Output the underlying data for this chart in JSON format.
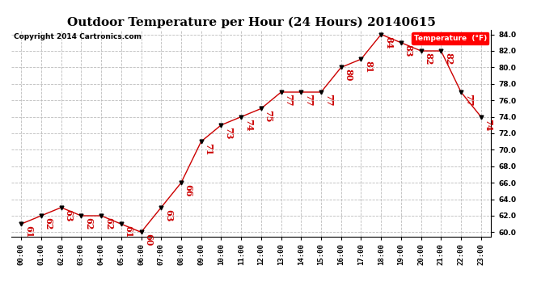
{
  "title": "Outdoor Temperature per Hour (24 Hours) 20140615",
  "copyright": "Copyright 2014 Cartronics.com",
  "legend_label": "Temperature  (°F)",
  "hours": [
    "00:00",
    "01:00",
    "02:00",
    "03:00",
    "04:00",
    "05:00",
    "06:00",
    "07:00",
    "08:00",
    "09:00",
    "10:00",
    "11:00",
    "12:00",
    "13:00",
    "14:00",
    "15:00",
    "16:00",
    "17:00",
    "18:00",
    "19:00",
    "20:00",
    "21:00",
    "22:00",
    "23:00"
  ],
  "temperatures": [
    61,
    62,
    63,
    62,
    62,
    61,
    60,
    63,
    66,
    71,
    73,
    74,
    75,
    77,
    77,
    77,
    80,
    81,
    84,
    83,
    82,
    82,
    77,
    74
  ],
  "ylim_min": 59.5,
  "ylim_max": 84.5,
  "yticks": [
    60.0,
    62.0,
    64.0,
    66.0,
    68.0,
    70.0,
    72.0,
    74.0,
    76.0,
    78.0,
    80.0,
    82.0,
    84.0
  ],
  "line_color": "#cc0000",
  "marker_color": "black",
  "label_color": "#cc0000",
  "bg_color": "white",
  "grid_color": "#bbbbbb",
  "title_fontsize": 11,
  "label_fontsize": 8,
  "tick_fontsize": 6.5,
  "copyright_fontsize": 6.5
}
